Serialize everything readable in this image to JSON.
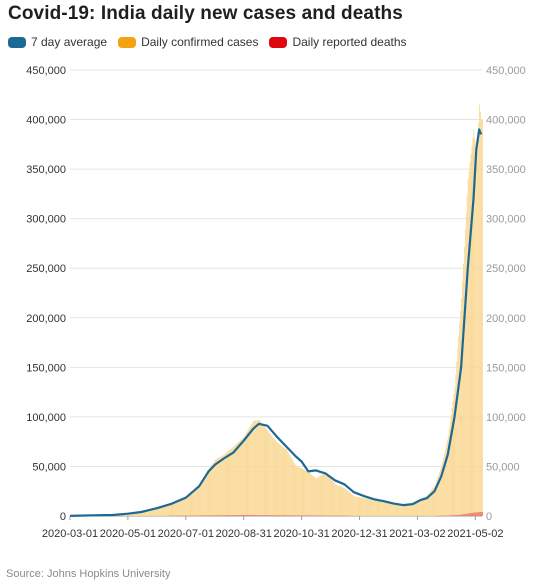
{
  "title": "Covid-19: India daily new cases and deaths",
  "legend": [
    {
      "label": "7 day average",
      "color": "#1d6996"
    },
    {
      "label": "Daily confirmed cases",
      "color": "#f2a30f"
    },
    {
      "label": "Daily reported deaths",
      "color": "#e0060f"
    }
  ],
  "source": "Source: Johns Hopkins University",
  "chart_data": {
    "type": "line",
    "title": "Covid-19: India daily new cases and deaths",
    "xlabel": "",
    "ylabel": "",
    "ylim": [
      0,
      450000
    ],
    "y_ticks": [
      "0",
      "50,000",
      "100,000",
      "150,000",
      "200,000",
      "250,000",
      "300,000",
      "350,000",
      "400,000",
      "450,000"
    ],
    "y_tick_values": [
      0,
      50000,
      100000,
      150000,
      200000,
      250000,
      300000,
      350000,
      400000,
      450000
    ],
    "x_ticks": [
      "2020-03-01",
      "2020-05-01",
      "2020-07-01",
      "2020-08-31",
      "2020-10-31",
      "2020-12-31",
      "2021-03-02",
      "2021-05-02"
    ],
    "x_range": [
      "2020-03-01",
      "2021-05-09"
    ],
    "grid": true,
    "legend_position": "top-left",
    "series": [
      {
        "name": "7 day average",
        "x": [
          "2020-03-01",
          "2020-04-01",
          "2020-04-15",
          "2020-05-01",
          "2020-05-15",
          "2020-06-01",
          "2020-06-15",
          "2020-07-01",
          "2020-07-15",
          "2020-07-25",
          "2020-08-01",
          "2020-08-10",
          "2020-08-20",
          "2020-08-31",
          "2020-09-10",
          "2020-09-16",
          "2020-09-25",
          "2020-10-05",
          "2020-10-15",
          "2020-10-25",
          "2020-10-31",
          "2020-11-07",
          "2020-11-15",
          "2020-11-25",
          "2020-12-05",
          "2020-12-15",
          "2020-12-25",
          "2021-01-05",
          "2021-01-15",
          "2021-01-25",
          "2021-02-05",
          "2021-02-15",
          "2021-02-25",
          "2021-03-05",
          "2021-03-12",
          "2021-03-20",
          "2021-03-27",
          "2021-04-03",
          "2021-04-10",
          "2021-04-17",
          "2021-04-24",
          "2021-04-30",
          "2021-05-03",
          "2021-05-06",
          "2021-05-08"
        ],
        "y": [
          100,
          800,
          1000,
          2300,
          4000,
          8000,
          12000,
          18500,
          30000,
          45000,
          52000,
          58000,
          64000,
          76000,
          88000,
          93000,
          91000,
          80000,
          70000,
          60000,
          55000,
          45000,
          46000,
          43000,
          36000,
          32000,
          24000,
          20000,
          17000,
          15000,
          12500,
          11000,
          12000,
          16000,
          18000,
          25000,
          40000,
          62000,
          100000,
          150000,
          250000,
          320000,
          370000,
          390000,
          385000
        ]
      },
      {
        "name": "Daily confirmed cases",
        "x": [
          "2020-03-01",
          "2020-04-01",
          "2020-04-15",
          "2020-05-01",
          "2020-05-15",
          "2020-06-01",
          "2020-06-15",
          "2020-07-01",
          "2020-07-15",
          "2020-07-25",
          "2020-08-01",
          "2020-08-10",
          "2020-08-20",
          "2020-08-31",
          "2020-09-10",
          "2020-09-16",
          "2020-09-25",
          "2020-10-05",
          "2020-10-15",
          "2020-10-25",
          "2020-10-31",
          "2020-11-07",
          "2020-11-15",
          "2020-11-25",
          "2020-12-05",
          "2020-12-15",
          "2020-12-25",
          "2021-01-05",
          "2021-01-15",
          "2021-01-25",
          "2021-02-05",
          "2021-02-15",
          "2021-02-25",
          "2021-03-05",
          "2021-03-12",
          "2021-03-20",
          "2021-03-27",
          "2021-04-03",
          "2021-04-10",
          "2021-04-17",
          "2021-04-24",
          "2021-04-30",
          "2021-05-03",
          "2021-05-06",
          "2021-05-08"
        ],
        "y": [
          100,
          1000,
          1200,
          2600,
          4500,
          8500,
          13000,
          19500,
          32000,
          48000,
          57000,
          62000,
          70000,
          80000,
          96000,
          97000,
          86000,
          74000,
          67000,
          50000,
          48000,
          44000,
          38000,
          44000,
          32000,
          28000,
          20000,
          18000,
          16000,
          14000,
          12000,
          11000,
          13500,
          17000,
          21000,
          31000,
          50000,
          81000,
          130000,
          220000,
          340000,
          390000,
          360000,
          415000,
          400000
        ]
      },
      {
        "name": "Daily reported deaths",
        "x": [
          "2020-03-01",
          "2020-05-01",
          "2020-07-01",
          "2020-08-31",
          "2020-10-31",
          "2020-12-31",
          "2021-03-02",
          "2021-04-01",
          "2021-04-15",
          "2021-05-01",
          "2021-05-08"
        ],
        "y": [
          0,
          100,
          400,
          1000,
          600,
          250,
          100,
          400,
          1200,
          3500,
          4100
        ]
      }
    ]
  }
}
